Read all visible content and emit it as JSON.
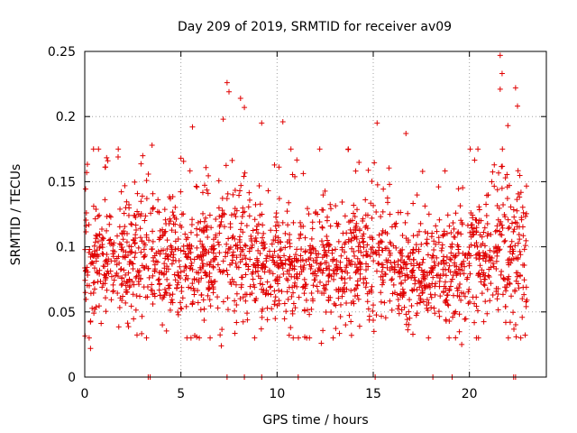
{
  "chart_data": {
    "type": "scatter",
    "title": "Day 209 of 2019, SRMTID for receiver av09",
    "xlabel": "GPS time / hours",
    "ylabel": "SRMTID / TECUs",
    "xlim": [
      0,
      24
    ],
    "ylim": [
      0,
      0.25
    ],
    "xticks": [
      0,
      5,
      10,
      15,
      20
    ],
    "xtick_labels": [
      "0",
      "5",
      "10",
      "15",
      "20"
    ],
    "yticks": [
      0,
      0.05,
      0.1,
      0.15,
      0.2,
      0.25
    ],
    "ytick_labels": [
      "0",
      "0.05",
      "0.1",
      "0.15",
      "0.2",
      "0.25"
    ],
    "grid": true,
    "marker": "+",
    "series_color": "#e00000",
    "points_note": "dense cloud of ~2000 points, mostly between 0.04 and 0.14, x from 0 to 23",
    "highlights": [
      {
        "x": 0.1,
        "y": 0.157
      },
      {
        "x": 0.3,
        "y": 0.022
      },
      {
        "x": 1.2,
        "y": 0.166
      },
      {
        "x": 3.5,
        "y": 0.178
      },
      {
        "x": 5.0,
        "y": 0.168
      },
      {
        "x": 5.6,
        "y": 0.192
      },
      {
        "x": 7.2,
        "y": 0.198
      },
      {
        "x": 7.4,
        "y": 0.226
      },
      {
        "x": 7.5,
        "y": 0.219
      },
      {
        "x": 8.1,
        "y": 0.214
      },
      {
        "x": 8.3,
        "y": 0.207
      },
      {
        "x": 9.2,
        "y": 0.195
      },
      {
        "x": 10.3,
        "y": 0.196
      },
      {
        "x": 15.2,
        "y": 0.195
      },
      {
        "x": 16.7,
        "y": 0.187
      },
      {
        "x": 21.6,
        "y": 0.247
      },
      {
        "x": 21.7,
        "y": 0.233
      },
      {
        "x": 21.6,
        "y": 0.221
      },
      {
        "x": 22.4,
        "y": 0.222
      },
      {
        "x": 22.5,
        "y": 0.208
      },
      {
        "x": 22.0,
        "y": 0.193
      },
      {
        "x": 7.1,
        "y": 0.024
      },
      {
        "x": 12.3,
        "y": 0.026
      },
      {
        "x": 19.6,
        "y": 0.025
      }
    ],
    "zero_points_x": [
      3.3,
      3.4,
      7.4,
      8.3,
      9.2,
      11.1,
      15.1,
      18.1,
      19.1,
      22.3,
      22.4
    ],
    "density": [
      {
        "x0": 0,
        "x1": 2,
        "mean": 0.085,
        "sd": 0.022,
        "n": 170
      },
      {
        "x0": 2,
        "x1": 4,
        "mean": 0.09,
        "sd": 0.025,
        "n": 170
      },
      {
        "x0": 4,
        "x1": 6,
        "mean": 0.088,
        "sd": 0.024,
        "n": 170
      },
      {
        "x0": 6,
        "x1": 8,
        "mean": 0.092,
        "sd": 0.028,
        "n": 170
      },
      {
        "x0": 8,
        "x1": 10,
        "mean": 0.095,
        "sd": 0.026,
        "n": 170
      },
      {
        "x0": 10,
        "x1": 12,
        "mean": 0.082,
        "sd": 0.022,
        "n": 170
      },
      {
        "x0": 12,
        "x1": 14,
        "mean": 0.083,
        "sd": 0.022,
        "n": 170
      },
      {
        "x0": 14,
        "x1": 16,
        "mean": 0.09,
        "sd": 0.023,
        "n": 170
      },
      {
        "x0": 16,
        "x1": 18,
        "mean": 0.075,
        "sd": 0.02,
        "n": 170
      },
      {
        "x0": 18,
        "x1": 20,
        "mean": 0.082,
        "sd": 0.022,
        "n": 170
      },
      {
        "x0": 20,
        "x1": 22,
        "mean": 0.09,
        "sd": 0.024,
        "n": 170
      },
      {
        "x0": 22,
        "x1": 23,
        "mean": 0.095,
        "sd": 0.03,
        "n": 90
      }
    ]
  }
}
